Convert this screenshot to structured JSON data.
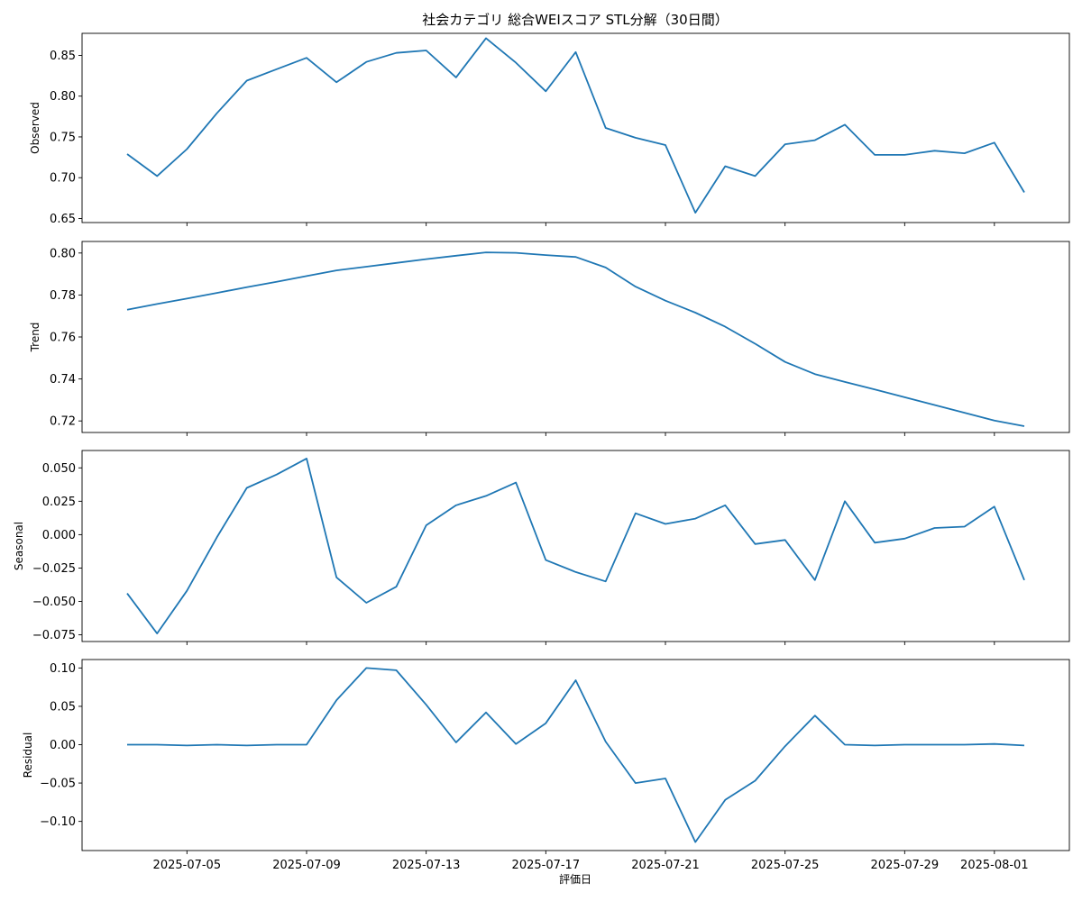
{
  "chart_data": {
    "type": "line",
    "title": "社会カテゴリ 総合WEIスコア STL分解（30日間）",
    "xlabel": "評価日",
    "x": [
      "2025-07-03",
      "2025-07-04",
      "2025-07-05",
      "2025-07-06",
      "2025-07-07",
      "2025-07-08",
      "2025-07-09",
      "2025-07-10",
      "2025-07-11",
      "2025-07-12",
      "2025-07-13",
      "2025-07-14",
      "2025-07-15",
      "2025-07-16",
      "2025-07-17",
      "2025-07-18",
      "2025-07-19",
      "2025-07-20",
      "2025-07-21",
      "2025-07-22",
      "2025-07-23",
      "2025-07-24",
      "2025-07-25",
      "2025-07-26",
      "2025-07-27",
      "2025-07-28",
      "2025-07-29",
      "2025-07-30",
      "2025-07-31",
      "2025-08-01",
      "2025-08-02"
    ],
    "xticks": [
      "2025-07-05",
      "2025-07-09",
      "2025-07-13",
      "2025-07-17",
      "2025-07-21",
      "2025-07-25",
      "2025-07-29",
      "2025-08-01"
    ],
    "line_color": "#1f77b4",
    "panels": [
      {
        "ylabel": "Observed",
        "ylim": [
          0.645,
          0.877
        ],
        "yticks": [
          "0.65",
          "0.70",
          "0.75",
          "0.80",
          "0.85"
        ],
        "values": [
          0.729,
          0.702,
          0.735,
          0.779,
          0.819,
          0.833,
          0.847,
          0.817,
          0.842,
          0.853,
          0.856,
          0.823,
          0.871,
          0.841,
          0.806,
          0.854,
          0.761,
          0.749,
          0.74,
          0.657,
          0.714,
          0.702,
          0.741,
          0.746,
          0.765,
          0.728,
          0.728,
          0.733,
          0.73,
          0.743,
          0.682
        ]
      },
      {
        "ylabel": "Trend",
        "ylim": [
          0.7145,
          0.8055
        ],
        "yticks": [
          "0.72",
          "0.74",
          "0.76",
          "0.78",
          "0.80"
        ],
        "values": [
          0.773,
          0.7757,
          0.7783,
          0.781,
          0.7837,
          0.7863,
          0.789,
          0.7917,
          0.7935,
          0.7953,
          0.7971,
          0.7987,
          0.8003,
          0.8001,
          0.799,
          0.7981,
          0.7931,
          0.784,
          0.7773,
          0.7716,
          0.7649,
          0.7568,
          0.7481,
          0.7423,
          0.7386,
          0.735,
          0.7313,
          0.7276,
          0.7239,
          0.7202,
          0.7175
        ]
      },
      {
        "ylabel": "Seasonal",
        "ylim": [
          -0.08,
          0.063
        ],
        "yticks": [
          "−0.075",
          "−0.050",
          "−0.025",
          "0.000",
          "0.025",
          "0.050"
        ],
        "values": [
          -0.044,
          -0.074,
          -0.042,
          -0.002,
          0.035,
          0.045,
          0.057,
          -0.032,
          -0.051,
          -0.039,
          0.007,
          0.022,
          0.029,
          0.039,
          -0.019,
          -0.028,
          -0.035,
          0.016,
          0.008,
          0.012,
          0.022,
          -0.007,
          -0.004,
          -0.034,
          0.025,
          -0.006,
          -0.003,
          0.005,
          0.006,
          0.021,
          -0.034
        ]
      },
      {
        "ylabel": "Residual",
        "ylim": [
          -0.138,
          0.111
        ],
        "yticks": [
          "−0.10",
          "−0.05",
          "0.00",
          "0.05",
          "0.10"
        ],
        "values": [
          0.0,
          0.0,
          -0.001,
          0.0,
          -0.001,
          0.0,
          0.0,
          0.058,
          0.1,
          0.097,
          0.052,
          0.003,
          0.042,
          0.001,
          0.028,
          0.084,
          0.004,
          -0.05,
          -0.044,
          -0.127,
          -0.072,
          -0.047,
          -0.002,
          0.038,
          0.0,
          -0.001,
          0.0,
          0.0,
          0.0,
          0.001,
          -0.001
        ]
      }
    ]
  }
}
